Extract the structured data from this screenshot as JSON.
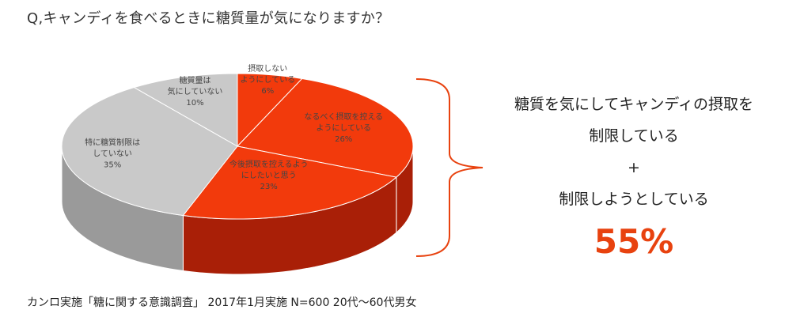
{
  "question": "Q,キャンディを食べるときに糖質量が気になりますか？",
  "source": "カンロ実施「糖に関する意識調査」 2017年1月実施 N=600 20代～60代男女",
  "summary": {
    "line1": "糖質を気にしてキャンディの摂取を",
    "line2": "制限している",
    "plus": "+",
    "line3": "制限しようとしている",
    "total": "55%"
  },
  "colors": {
    "red": "#f23a0c",
    "red_side": "#a91f07",
    "gray": "#c9c9c9",
    "gray_side": "#9a9a9a",
    "accent": "#e8420f"
  },
  "chart_data": {
    "type": "pie",
    "title": "",
    "series": [
      {
        "values": [
          6,
          26,
          23,
          35,
          10
        ],
        "categories": [
          "摂取しないようにしている",
          "なるべく摂取を控えるようにしている",
          "今後摂取を控えるようにしたいと思う",
          "特に糖質制限はしていない",
          "糖質量は気にしていない"
        ]
      }
    ],
    "slices": [
      {
        "label_lines": [
          "摂取しない",
          "ようにしている"
        ],
        "value": 6,
        "pct": "6%",
        "highlight": true
      },
      {
        "label_lines": [
          "なるべく摂取を控える",
          "ようにしている"
        ],
        "value": 26,
        "pct": "26%",
        "highlight": true
      },
      {
        "label_lines": [
          "今後摂取を控えるよう",
          "にしたいと思う"
        ],
        "value": 23,
        "pct": "23%",
        "highlight": true
      },
      {
        "label_lines": [
          "特に糖質制限は",
          "していない"
        ],
        "value": 35,
        "pct": "35%",
        "highlight": false
      },
      {
        "label_lines": [
          "糖質量は",
          "気にしていない"
        ],
        "value": 10,
        "pct": "10%",
        "highlight": false
      }
    ],
    "style": "3d-pie",
    "start_angle": "12 o'clock, clockwise"
  }
}
